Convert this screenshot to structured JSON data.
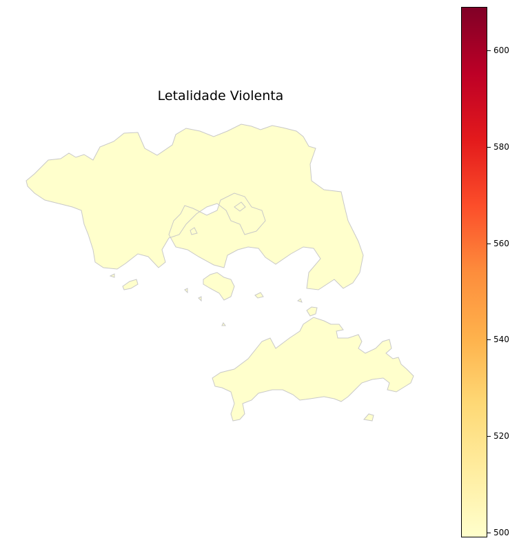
{
  "title": "Letalidade Violenta",
  "map": {
    "fill_color": "#ffffcc",
    "edge_color": "#c8c8c8",
    "regions": [
      "northern-mainland",
      "southern-island",
      "small-islands"
    ]
  },
  "colorbar": {
    "colormap": "YlOrRd",
    "min": 499,
    "max": 609,
    "ticks": [
      {
        "value": 500,
        "label": "500"
      },
      {
        "value": 520,
        "label": "520"
      },
      {
        "value": 540,
        "label": "540"
      },
      {
        "value": 560,
        "label": "560"
      },
      {
        "value": 580,
        "label": "580"
      },
      {
        "value": 600,
        "label": "600"
      }
    ],
    "colors": [
      "#ffffcc",
      "#ffeda0",
      "#fed976",
      "#feb24c",
      "#fd8d3c",
      "#fc4e2a",
      "#e31a1c",
      "#bd0026",
      "#800026"
    ]
  }
}
